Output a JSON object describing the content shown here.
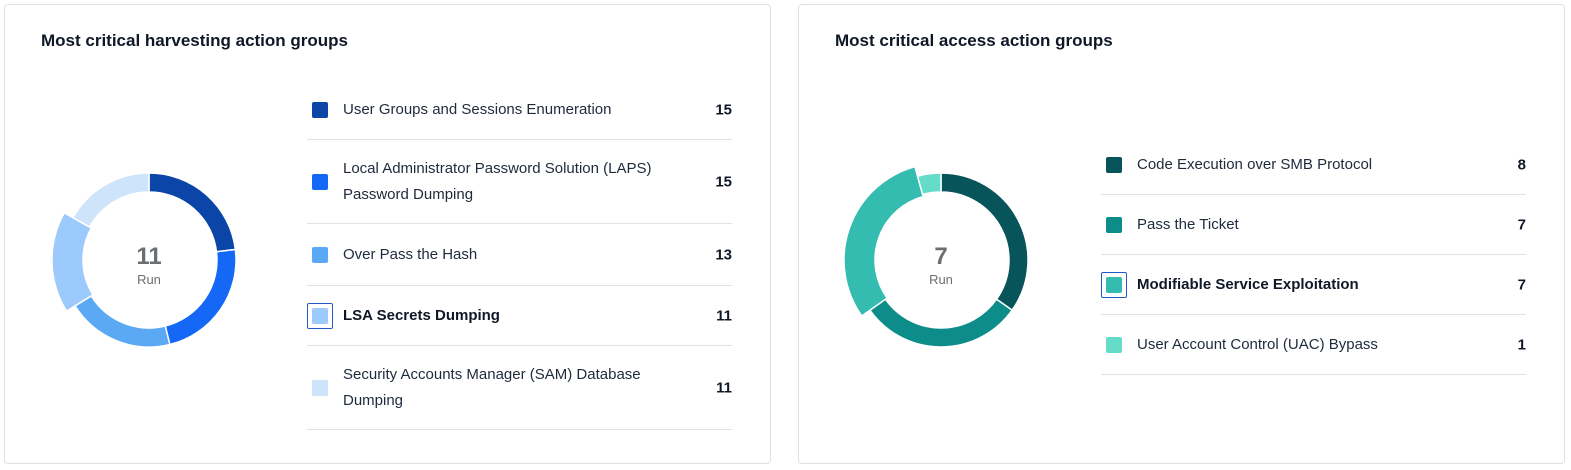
{
  "chart_data": [
    {
      "type": "pie",
      "title": "Most critical harvesting action groups",
      "center_value": "11",
      "center_label": "Run",
      "selected_index": 3,
      "categories": [
        "User Groups and Sessions Enumeration",
        "Local Administrator Password Solution (LAPS) Password Dumping",
        "Over Pass the Hash",
        "LSA Secrets Dumping",
        "Security Accounts Manager (SAM) Database Dumping"
      ],
      "values": [
        15,
        15,
        13,
        11,
        11
      ],
      "colors": [
        "#0b45a8",
        "#1468f5",
        "#5ba8f5",
        "#9ccafc",
        "#cde4fb"
      ]
    },
    {
      "type": "pie",
      "title": "Most critical access action groups",
      "center_value": "7",
      "center_label": "Run",
      "selected_index": 2,
      "categories": [
        "Code Execution over SMB Protocol",
        "Pass the Ticket",
        "Modifiable Service Exploitation",
        "User Account Control (UAC) Bypass"
      ],
      "values": [
        8,
        7,
        7,
        1
      ],
      "colors": [
        "#07545a",
        "#0c8d89",
        "#34bcb0",
        "#64dcc8"
      ]
    }
  ]
}
